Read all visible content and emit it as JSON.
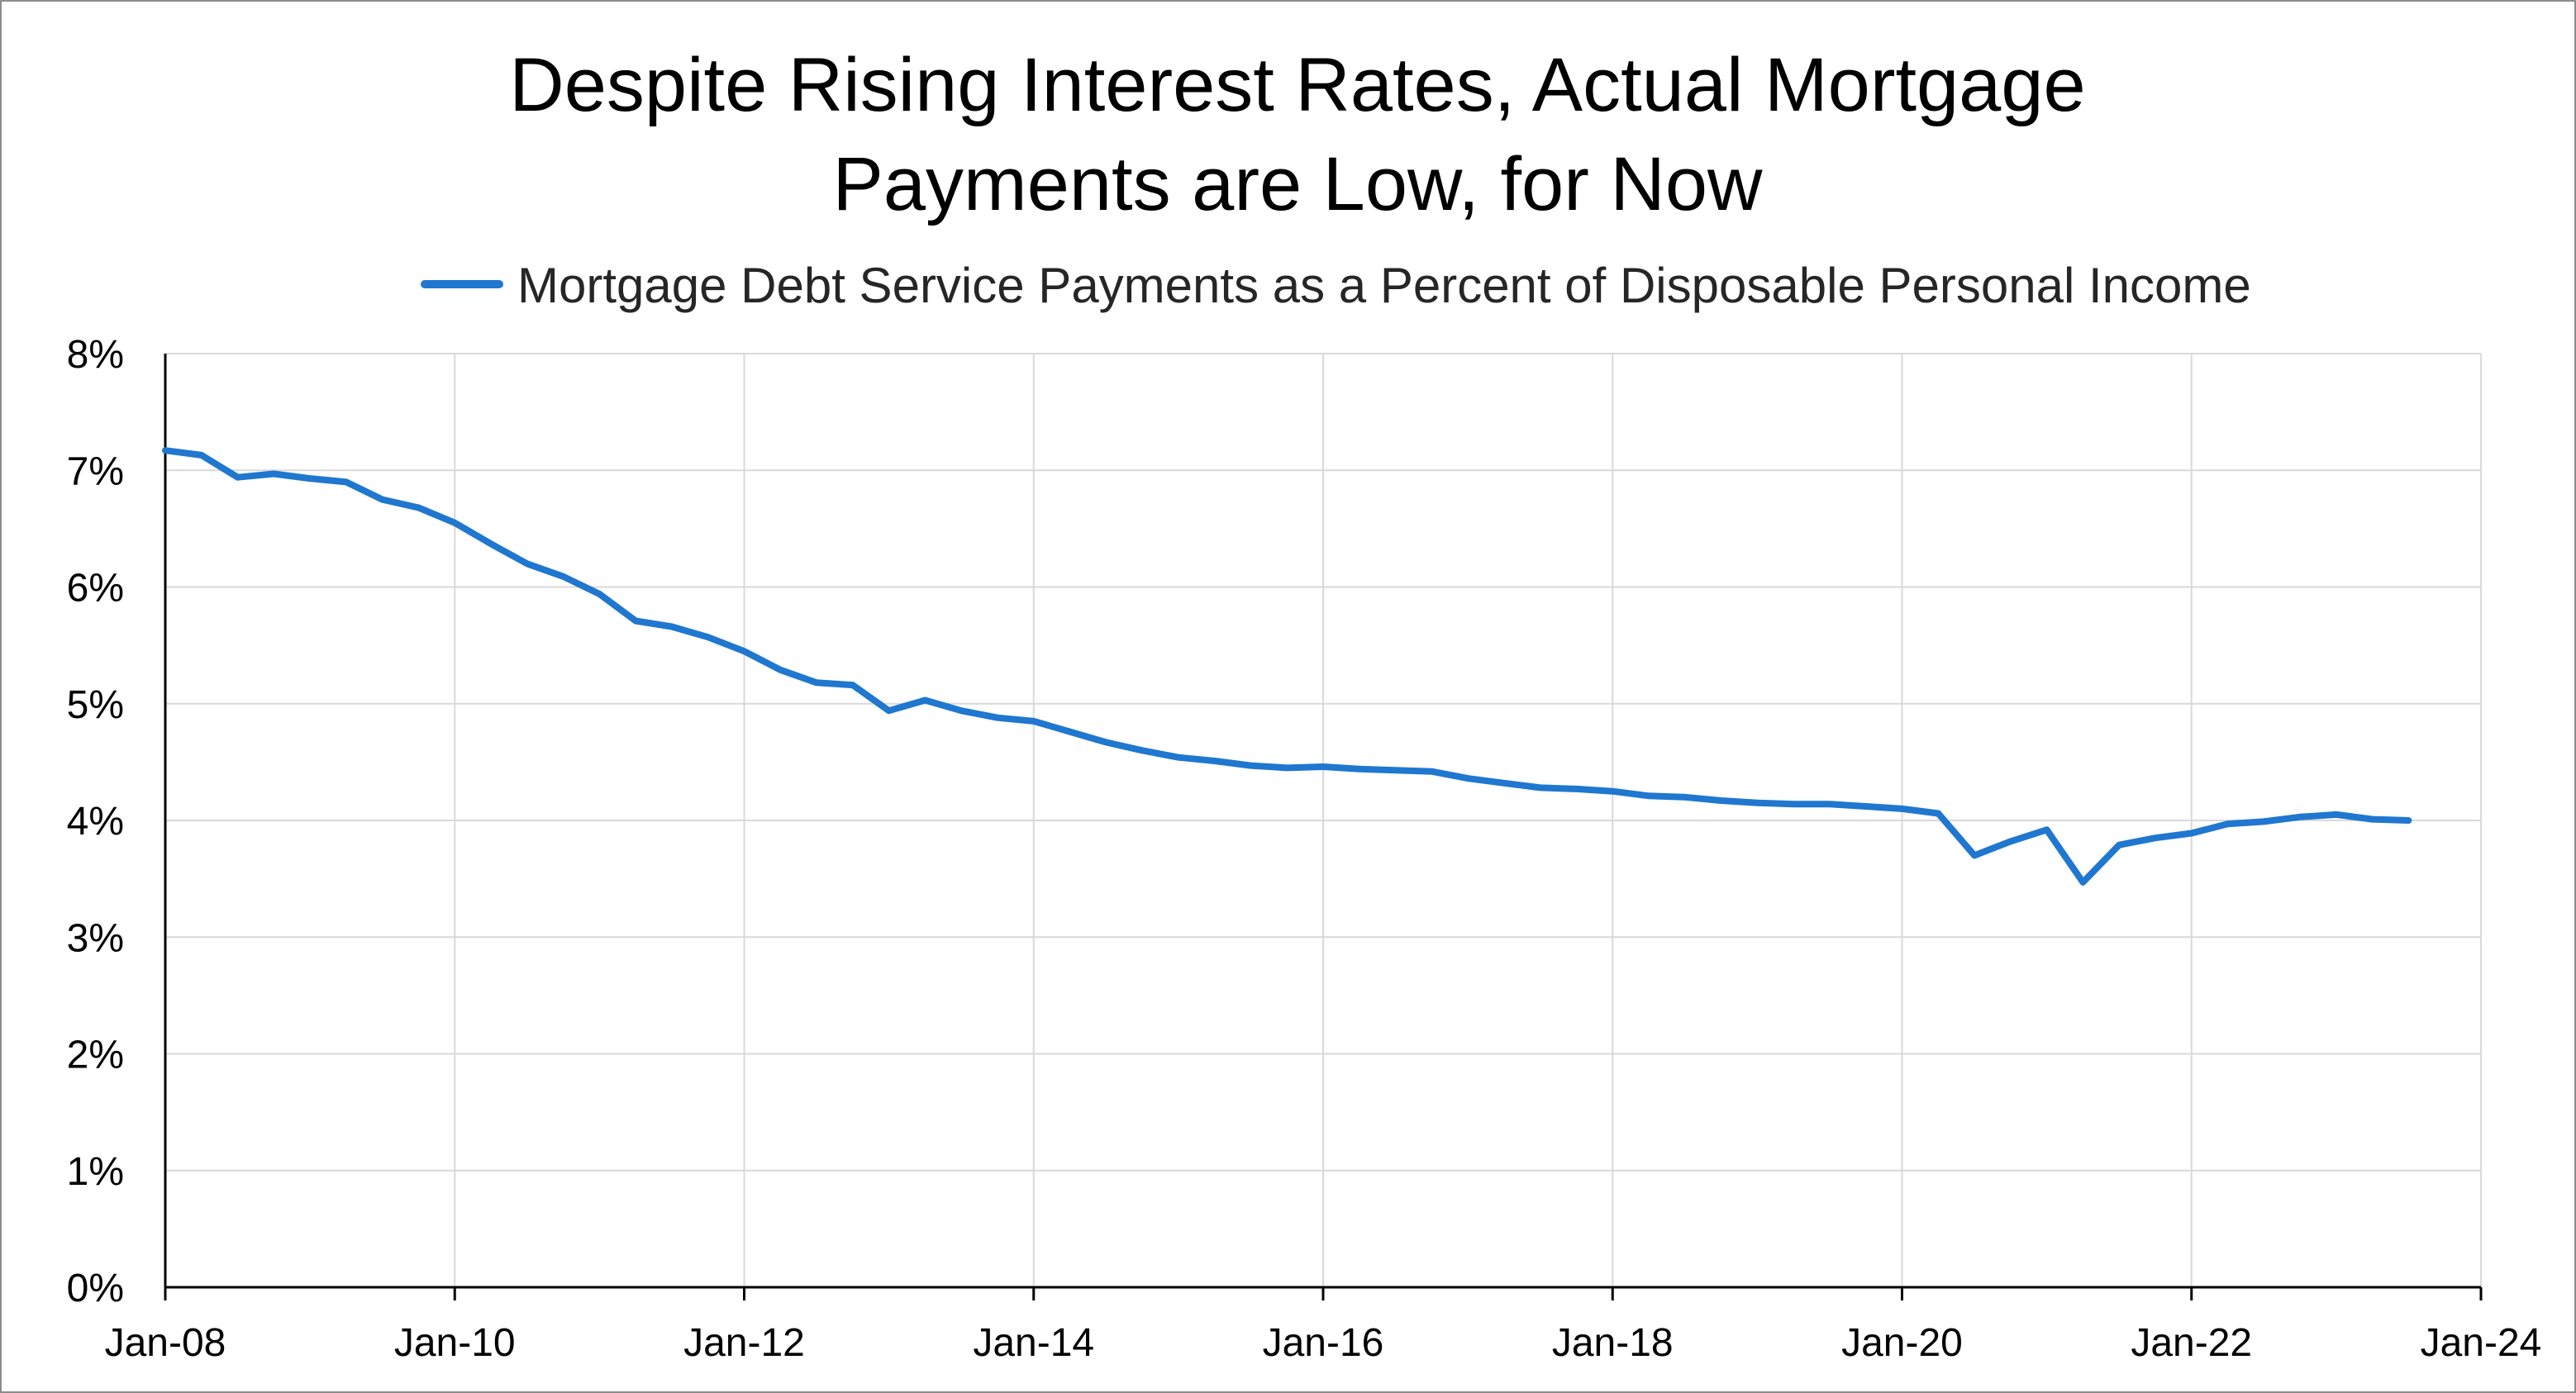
{
  "chart_data": {
    "type": "line",
    "title_lines": [
      "Despite Rising Interest Rates, Actual Mortgage",
      "Payments are Low, for Now"
    ],
    "xlabel": "",
    "ylabel": "",
    "legend_position": "top-center",
    "grid": true,
    "colors": {
      "series": "#1f77d0",
      "grid": "#d9d9d9",
      "axis": "#000000"
    },
    "x_axis": {
      "start_year": 2008,
      "end_year": 2024,
      "tick_labels": [
        "Jan-08",
        "Jan-10",
        "Jan-12",
        "Jan-14",
        "Jan-16",
        "Jan-18",
        "Jan-20",
        "Jan-22",
        "Jan-24"
      ],
      "tick_years": [
        2008,
        2010,
        2012,
        2014,
        2016,
        2018,
        2020,
        2022,
        2024
      ]
    },
    "y_axis": {
      "ylim": [
        0,
        8
      ],
      "tick_labels": [
        "0%",
        "1%",
        "2%",
        "3%",
        "4%",
        "5%",
        "6%",
        "7%",
        "8%"
      ],
      "tick_values": [
        0,
        1,
        2,
        3,
        4,
        5,
        6,
        7,
        8
      ]
    },
    "series": [
      {
        "name": "Mortgage Debt Service Payments as a Percent of Disposable Personal Income",
        "x": [
          2008.0,
          2008.25,
          2008.5,
          2008.75,
          2009.0,
          2009.25,
          2009.5,
          2009.75,
          2010.0,
          2010.25,
          2010.5,
          2010.75,
          2011.0,
          2011.25,
          2011.5,
          2011.75,
          2012.0,
          2012.25,
          2012.5,
          2012.75,
          2013.0,
          2013.25,
          2013.5,
          2013.75,
          2014.0,
          2014.25,
          2014.5,
          2014.75,
          2015.0,
          2015.25,
          2015.5,
          2015.75,
          2016.0,
          2016.25,
          2016.5,
          2016.75,
          2017.0,
          2017.25,
          2017.5,
          2017.75,
          2018.0,
          2018.25,
          2018.5,
          2018.75,
          2019.0,
          2019.25,
          2019.5,
          2019.75,
          2020.0,
          2020.25,
          2020.5,
          2020.75,
          2021.0,
          2021.25,
          2021.5,
          2021.75,
          2022.0,
          2022.25,
          2022.5,
          2022.75,
          2023.0,
          2023.25,
          2023.5
        ],
        "values": [
          7.17,
          7.13,
          6.94,
          6.97,
          6.93,
          6.9,
          6.75,
          6.68,
          6.55,
          6.37,
          6.2,
          6.09,
          5.94,
          5.71,
          5.66,
          5.57,
          5.45,
          5.29,
          5.18,
          5.16,
          4.94,
          5.03,
          4.94,
          4.88,
          4.85,
          4.76,
          4.67,
          4.6,
          4.54,
          4.51,
          4.47,
          4.45,
          4.46,
          4.44,
          4.43,
          4.42,
          4.36,
          4.32,
          4.28,
          4.27,
          4.25,
          4.21,
          4.2,
          4.17,
          4.15,
          4.14,
          4.14,
          4.12,
          4.1,
          4.06,
          3.7,
          3.82,
          3.92,
          3.47,
          3.79,
          3.85,
          3.89,
          3.97,
          3.99,
          4.03,
          4.05,
          4.01,
          4.0
        ]
      }
    ]
  }
}
